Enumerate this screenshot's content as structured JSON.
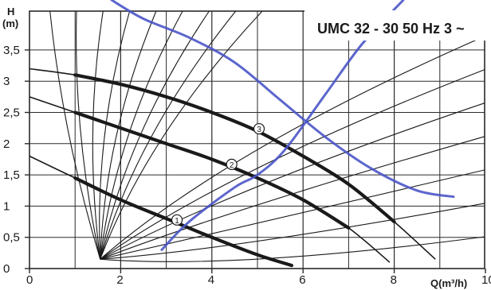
{
  "chart_data": {
    "type": "line",
    "title": "UMC 32 - 30 50 Hz 3 ~",
    "xlabel": "Q(m³/h)",
    "ylabel_top": "H",
    "ylabel_unit": "(m)",
    "xlim": [
      0,
      10
    ],
    "ylim": [
      0,
      3.9
    ],
    "x_ticks": [
      "0",
      "2",
      "4",
      "6",
      "8",
      "10"
    ],
    "y_ticks": [
      "0",
      "0,5",
      "1",
      "1,5",
      "2",
      "2,5",
      "3",
      "3,5"
    ],
    "grid": true,
    "series": [
      {
        "name": "①",
        "x": [
          0,
          1,
          2,
          3,
          4,
          5,
          5.75
        ],
        "y": [
          1.8,
          1.45,
          1.1,
          0.8,
          0.5,
          0.22,
          0.05
        ]
      },
      {
        "name": "②",
        "x": [
          0,
          1,
          2,
          3,
          4,
          5,
          6,
          7,
          7.9
        ],
        "y": [
          2.75,
          2.5,
          2.25,
          2.0,
          1.75,
          1.45,
          1.1,
          0.65,
          0.1
        ]
      },
      {
        "name": "③",
        "x": [
          0,
          1,
          2,
          3,
          4,
          5,
          6,
          7,
          8,
          8.9
        ],
        "y": [
          3.2,
          3.1,
          2.95,
          2.75,
          2.5,
          2.2,
          1.8,
          1.35,
          0.75,
          0.15
        ]
      }
    ],
    "overlay_series": [
      {
        "x": [
          2.9,
          3.5,
          4.5,
          5.0,
          5.6,
          6.5,
          7.3,
          8.2
        ],
        "y": [
          0.3,
          0.75,
          1.3,
          1.5,
          1.9,
          2.8,
          3.6,
          4.3
        ]
      },
      {
        "x": [
          1.8,
          2.5,
          3.5,
          4.5,
          5.5,
          6.5,
          7.5,
          8.5,
          9.3
        ],
        "y": [
          4.3,
          4.0,
          3.7,
          3.3,
          2.7,
          2.1,
          1.6,
          1.25,
          1.15
        ]
      }
    ],
    "iso_lines_count": 16,
    "colors": {
      "curves": "#1a1a1a",
      "grid": "#2a2a2a",
      "overlay": "#4a55c8"
    }
  }
}
